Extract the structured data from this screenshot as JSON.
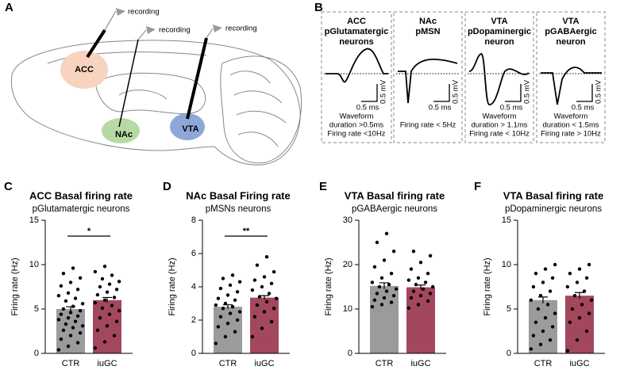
{
  "panel_a": {
    "label": "A",
    "recording": [
      "recording",
      "recording",
      "recording"
    ],
    "regions": [
      "ACC",
      "NAc",
      "VTA"
    ]
  },
  "panel_b": {
    "label": "B",
    "cells": [
      {
        "title": [
          "ACC",
          "pGlutamatergic",
          "neurons"
        ],
        "notes": [
          "Waveform",
          "duration >0.5ms",
          "Firing rate <10Hz"
        ],
        "time_scale": "0.5 ms",
        "amp_scale": "0.5 mV"
      },
      {
        "title": [
          "NAc",
          "pMSN"
        ],
        "notes": [
          "Firing rate < 5Hz"
        ],
        "time_scale": "0.5 ms",
        "amp_scale": "0.5 mV"
      },
      {
        "title": [
          "VTA",
          "pDopaminergic",
          "neuron"
        ],
        "notes": [
          "Waveform",
          "duration > 1.1ms",
          "Firing rate < 10Hz"
        ],
        "time_scale": "0.5 ms",
        "amp_scale": "0.5 mV"
      },
      {
        "title": [
          "VTA",
          "pGABAergic",
          "neuron"
        ],
        "notes": [
          "Waveform",
          "duration < 1.5ms",
          "Firing rate > 10Hz"
        ],
        "time_scale": "0.5 ms",
        "amp_scale": "0.5 mV"
      }
    ]
  },
  "chart_data": [
    {
      "type": "bar",
      "panel": "C",
      "title": "ACC Basal firing rate",
      "subtitle": "pGlutamatergic neurons",
      "y_label": "Firing rate (Hz)",
      "categories": [
        "CTR",
        "iuGC"
      ],
      "values": [
        5.0,
        6.0
      ],
      "errors": [
        0.25,
        0.3
      ],
      "colors": [
        "#9b9b9b",
        "#a3475d"
      ],
      "points": [
        [
          0.4,
          0.8,
          1.2,
          1.6,
          2.0,
          2.3,
          2.6,
          2.9,
          3.1,
          3.3,
          3.6,
          3.8,
          4.0,
          4.2,
          4.4,
          4.6,
          4.8,
          5.0,
          5.3,
          5.6,
          5.9,
          6.2,
          6.5,
          6.8,
          7.2,
          7.6,
          8.0,
          8.5,
          9.0,
          9.6
        ],
        [
          0.6,
          1.3,
          2.0,
          2.6,
          3.1,
          3.6,
          4.0,
          4.4,
          4.8,
          5.1,
          5.4,
          5.7,
          6.0,
          6.3,
          6.6,
          6.9,
          7.2,
          7.5,
          7.8,
          8.1,
          8.4,
          8.8,
          9.2,
          9.8
        ]
      ],
      "ylim": [
        0,
        15
      ],
      "yticks": [
        0,
        5,
        10,
        15
      ],
      "significance": "*"
    },
    {
      "type": "bar",
      "panel": "D",
      "title": "NAc Basal Firing rate",
      "subtitle": "pMSNs neurons",
      "y_label": "Firing rate (Hz)",
      "categories": [
        "CTR",
        "iuGC"
      ],
      "values": [
        2.8,
        3.35
      ],
      "errors": [
        0.12,
        0.12
      ],
      "colors": [
        "#9b9b9b",
        "#a3475d"
      ],
      "points": [
        [
          0.6,
          1.0,
          1.3,
          1.6,
          1.8,
          2.0,
          2.2,
          2.4,
          2.5,
          2.7,
          2.8,
          2.9,
          3.0,
          3.2,
          3.3,
          3.5,
          3.7,
          3.9,
          4.1,
          4.3,
          4.5,
          4.7
        ],
        [
          1.0,
          1.5,
          1.9,
          2.2,
          2.5,
          2.7,
          2.9,
          3.1,
          3.3,
          3.4,
          3.6,
          3.8,
          4.0,
          4.2,
          4.4,
          4.6,
          4.9,
          5.3,
          5.8
        ]
      ],
      "ylim": [
        0,
        8
      ],
      "yticks": [
        0,
        2,
        4,
        6,
        8
      ],
      "significance": "**"
    },
    {
      "type": "bar",
      "panel": "E",
      "title": "VTA Basal firing rate",
      "subtitle": "pGABAergic neurons",
      "y_label": "Firing rate (Hz)",
      "categories": [
        "CTR",
        "iuGC"
      ],
      "values": [
        15.2,
        14.9
      ],
      "errors": [
        0.7,
        0.5
      ],
      "colors": [
        "#9b9b9b",
        "#a3475d"
      ],
      "points": [
        [
          10.5,
          11.0,
          11.5,
          12.0,
          12.5,
          13.0,
          13.5,
          14.0,
          14.5,
          15.0,
          15.5,
          16.0,
          17.0,
          18.0,
          19.5,
          21.0,
          23.0,
          25.0,
          27.0
        ],
        [
          10.2,
          11.0,
          11.8,
          12.5,
          13.0,
          13.5,
          14.0,
          14.5,
          15.0,
          15.5,
          16.0,
          16.5,
          17.0,
          18.0,
          19.0,
          20.5,
          22.0,
          23.0
        ]
      ],
      "ylim": [
        0,
        30
      ],
      "yticks": [
        0,
        10,
        20,
        30
      ]
    },
    {
      "type": "bar",
      "panel": "F",
      "title": "VTA Basal firing rate",
      "subtitle": "pDopaminergic neurons",
      "y_label": "Firing rate (Hz)",
      "categories": [
        "CTR",
        "iuGC"
      ],
      "values": [
        6.0,
        6.5
      ],
      "errors": [
        0.35,
        0.35
      ],
      "colors": [
        "#9b9b9b",
        "#a3475d"
      ],
      "points": [
        [
          0.5,
          1.0,
          1.5,
          2.0,
          2.5,
          3.0,
          3.5,
          4.0,
          4.5,
          5.0,
          5.5,
          6.0,
          6.5,
          7.0,
          7.5,
          8.0,
          8.5,
          9.0,
          9.5,
          10.0
        ],
        [
          0.3,
          1.5,
          2.5,
          3.5,
          4.0,
          4.5,
          5.0,
          5.5,
          6.0,
          6.5,
          7.0,
          7.5,
          8.0,
          8.5,
          9.0,
          9.5,
          10.0
        ]
      ],
      "ylim": [
        0,
        15
      ],
      "yticks": [
        0,
        5,
        10,
        15
      ]
    }
  ]
}
